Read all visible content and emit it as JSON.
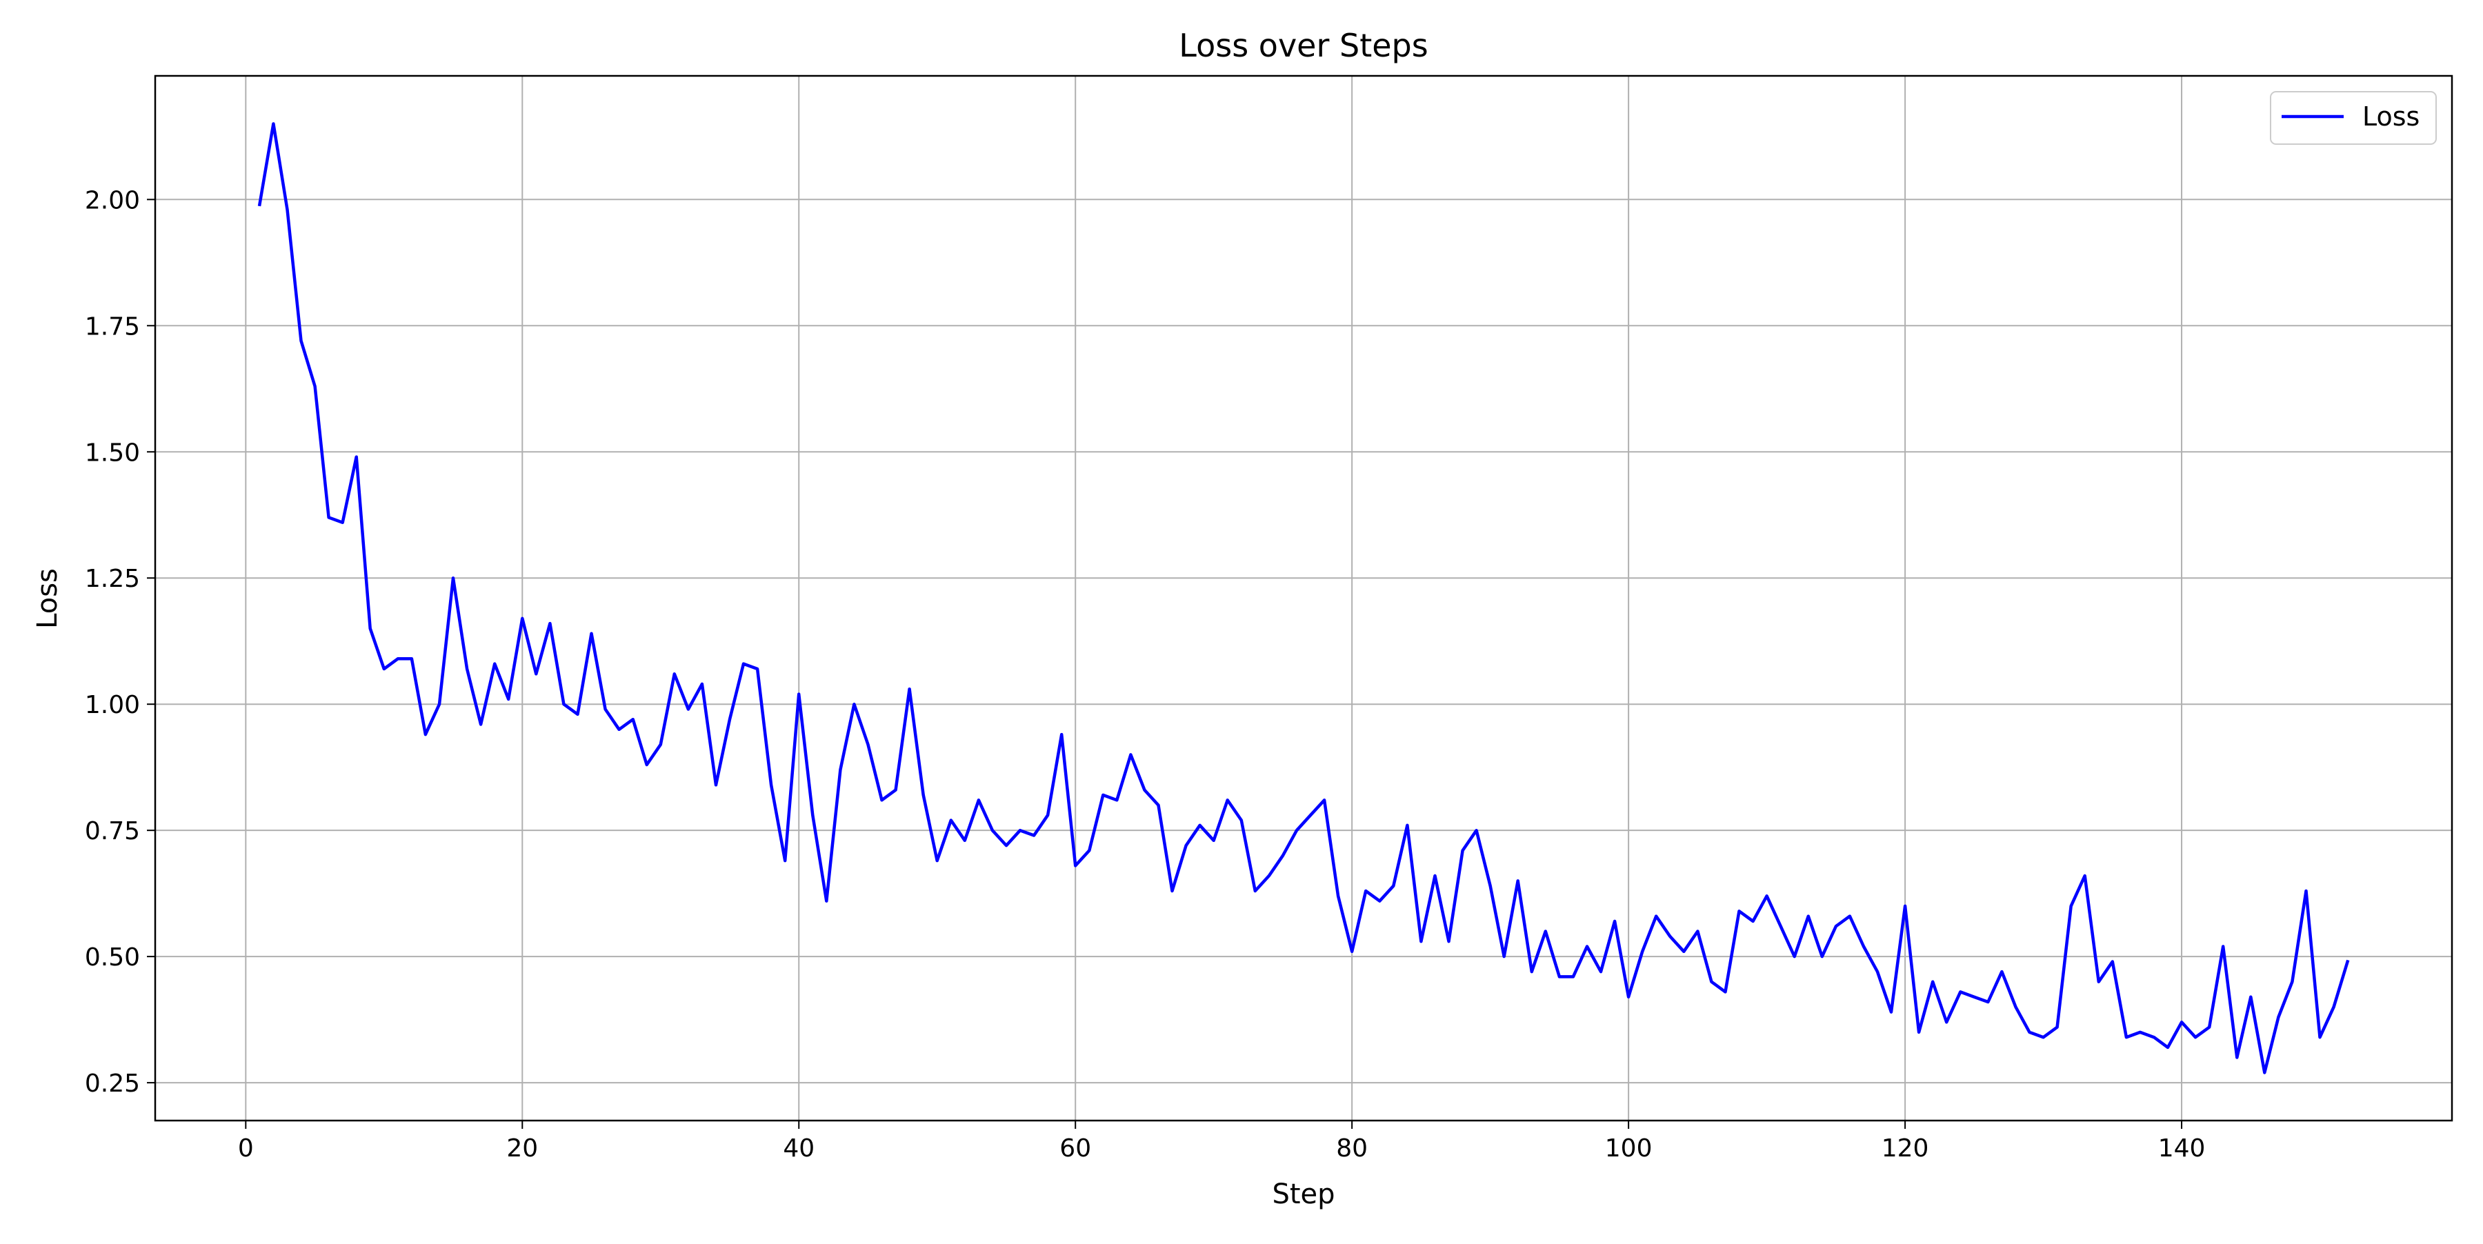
{
  "chart_data": {
    "type": "line",
    "title": "Loss over Steps",
    "xlabel": "Step",
    "ylabel": "Loss",
    "xlim": [
      -6.55,
      159.55
    ],
    "ylim": [
      0.175,
      2.245
    ],
    "xticks": [
      0,
      20,
      40,
      60,
      80,
      100,
      120,
      140
    ],
    "xtick_labels": [
      "0",
      "20",
      "40",
      "60",
      "80",
      "100",
      "120",
      "140"
    ],
    "yticks": [
      0.25,
      0.5,
      0.75,
      1.0,
      1.25,
      1.5,
      1.75,
      2.0
    ],
    "ytick_labels": [
      "0.25",
      "0.50",
      "0.75",
      "1.00",
      "1.25",
      "1.50",
      "1.75",
      "2.00"
    ],
    "grid": true,
    "legend_position": "top-right",
    "series": [
      {
        "name": "Loss",
        "color": "#0000ff",
        "x": [
          1,
          2,
          3,
          4,
          5,
          6,
          7,
          8,
          9,
          10,
          11,
          12,
          13,
          14,
          15,
          16,
          17,
          18,
          19,
          20,
          21,
          22,
          23,
          24,
          25,
          26,
          27,
          28,
          29,
          30,
          31,
          32,
          33,
          34,
          35,
          36,
          37,
          38,
          39,
          40,
          41,
          42,
          43,
          44,
          45,
          46,
          47,
          48,
          49,
          50,
          51,
          52,
          53,
          54,
          55,
          56,
          57,
          58,
          59,
          60,
          61,
          62,
          63,
          64,
          65,
          66,
          67,
          68,
          69,
          70,
          71,
          72,
          73,
          74,
          75,
          76,
          77,
          78,
          79,
          80,
          81,
          82,
          83,
          84,
          85,
          86,
          87,
          88,
          89,
          90,
          91,
          92,
          93,
          94,
          95,
          96,
          97,
          98,
          99,
          100,
          101,
          102,
          103,
          104,
          105,
          106,
          107,
          108,
          109,
          110,
          111,
          112,
          113,
          114,
          115,
          116,
          117,
          118,
          119,
          120,
          121,
          122,
          123,
          124,
          125,
          126,
          127,
          128,
          129,
          130,
          131,
          132,
          133,
          134,
          135,
          136,
          137,
          138,
          139,
          140,
          141,
          142,
          143,
          144,
          145,
          146,
          147,
          148,
          149,
          150,
          151,
          152
        ],
        "y": [
          1.99,
          2.15,
          1.98,
          1.72,
          1.63,
          1.37,
          1.36,
          1.49,
          1.15,
          1.07,
          1.09,
          1.09,
          0.94,
          1.0,
          1.25,
          1.07,
          0.96,
          1.08,
          1.01,
          1.17,
          1.06,
          1.16,
          1.0,
          0.98,
          1.14,
          0.99,
          0.95,
          0.97,
          0.88,
          0.92,
          1.06,
          0.99,
          1.04,
          0.84,
          0.97,
          1.08,
          1.07,
          0.84,
          0.69,
          1.02,
          0.78,
          0.61,
          0.87,
          1.0,
          0.92,
          0.81,
          0.83,
          1.03,
          0.82,
          0.69,
          0.77,
          0.73,
          0.81,
          0.75,
          0.72,
          0.75,
          0.74,
          0.78,
          0.94,
          0.68,
          0.71,
          0.82,
          0.81,
          0.9,
          0.83,
          0.8,
          0.63,
          0.72,
          0.76,
          0.73,
          0.81,
          0.77,
          0.63,
          0.66,
          0.7,
          0.75,
          0.78,
          0.81,
          0.62,
          0.51,
          0.63,
          0.61,
          0.64,
          0.76,
          0.53,
          0.66,
          0.53,
          0.71,
          0.75,
          0.64,
          0.5,
          0.65,
          0.47,
          0.55,
          0.46,
          0.46,
          0.52,
          0.47,
          0.57,
          0.42,
          0.51,
          0.58,
          0.54,
          0.51,
          0.55,
          0.45,
          0.43,
          0.59,
          0.57,
          0.62,
          0.56,
          0.5,
          0.58,
          0.5,
          0.56,
          0.58,
          0.52,
          0.47,
          0.39,
          0.6,
          0.35,
          0.45,
          0.37,
          0.43,
          0.42,
          0.41,
          0.47,
          0.4,
          0.35,
          0.34,
          0.36,
          0.6,
          0.66,
          0.45,
          0.49,
          0.34,
          0.35,
          0.34,
          0.32,
          0.37,
          0.34,
          0.36,
          0.52,
          0.3,
          0.42,
          0.27,
          0.38,
          0.45,
          0.63,
          0.34,
          0.4,
          0.49
        ]
      }
    ]
  }
}
